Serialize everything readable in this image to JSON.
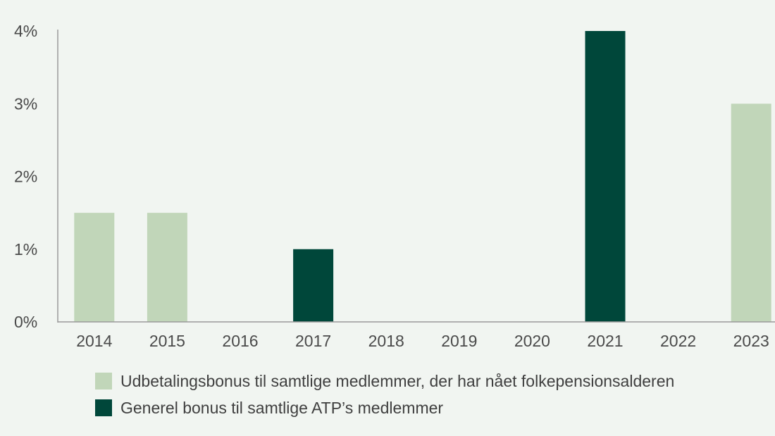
{
  "chart_data": {
    "type": "bar",
    "categories": [
      "2014",
      "2015",
      "2016",
      "2017",
      "2018",
      "2019",
      "2020",
      "2021",
      "2022",
      "2023"
    ],
    "series": [
      {
        "name": "Udbetalingsbonus til samtlige medlemmer, der har nået folkepensionsalderen",
        "color": "#c1d6b9",
        "values": [
          1.5,
          1.5,
          0,
          0,
          0,
          0,
          0,
          0,
          0,
          3
        ]
      },
      {
        "name": "Generel bonus til samtlige ATP’s medlemmer",
        "color": "#00473a",
        "values": [
          0,
          0,
          0,
          1,
          0,
          0,
          0,
          4,
          0,
          0
        ]
      }
    ],
    "yticks": [
      "0%",
      "1%",
      "2%",
      "3%",
      "4%"
    ],
    "ylim": [
      0,
      4
    ],
    "grid": false,
    "legend_position": "bottom-left"
  }
}
